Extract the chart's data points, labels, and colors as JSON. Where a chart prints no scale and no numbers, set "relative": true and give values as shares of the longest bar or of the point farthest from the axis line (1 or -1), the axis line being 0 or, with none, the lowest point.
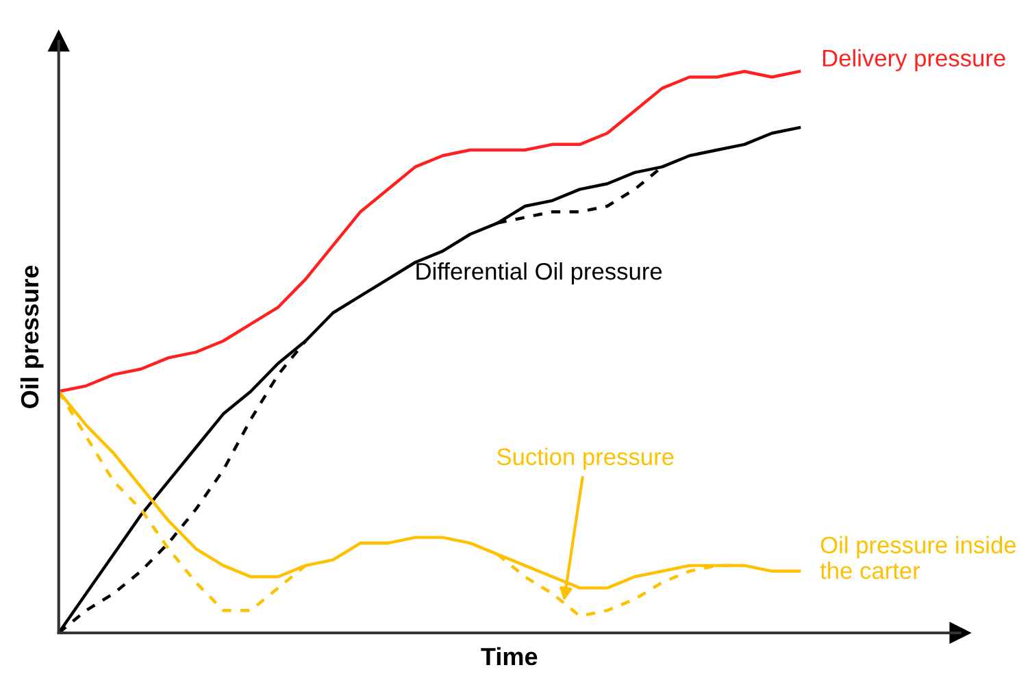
{
  "chart_data": {
    "type": "line",
    "relative": true,
    "xlabel": "Time",
    "ylabel": "Oil pressure",
    "categories": [
      null,
      null,
      null,
      null,
      null,
      null,
      null,
      null,
      null,
      null,
      null,
      null,
      null,
      null,
      null,
      null,
      null,
      null,
      null,
      null,
      null,
      null,
      null,
      null,
      null,
      null,
      null,
      null
    ],
    "series": [
      {
        "name": "Delivery pressure",
        "color": "#ff2020",
        "line_style": "solid",
        "values": [
          0.43,
          0.44,
          0.46,
          0.47,
          0.49,
          0.5,
          0.52,
          0.55,
          0.58,
          0.63,
          0.69,
          0.75,
          0.79,
          0.83,
          0.85,
          0.86,
          0.86,
          0.86,
          0.87,
          0.87,
          0.89,
          0.93,
          0.97,
          0.99,
          0.99,
          1.0,
          0.99,
          1.0
        ]
      },
      {
        "name": "Differential Oil pressure",
        "color": "#000000",
        "line_style": "solid",
        "values": [
          0,
          0.07,
          0.14,
          0.21,
          0.27,
          0.33,
          0.39,
          0.43,
          0.48,
          0.52,
          0.57,
          0.6,
          0.63,
          0.66,
          0.68,
          0.71,
          0.73,
          0.76,
          0.77,
          0.79,
          0.8,
          0.82,
          0.83,
          0.85,
          0.86,
          0.87,
          0.89,
          0.9
        ]
      },
      {
        "color": "#000000",
        "line_style": "dashed",
        "values": [
          0,
          0.04,
          0.07,
          0.11,
          0.16,
          0.22,
          0.29,
          0.38,
          0.46,
          0.52,
          null,
          null,
          null,
          null,
          null,
          null,
          0.73,
          0.74,
          0.75,
          0.75,
          0.76,
          0.79,
          0.83,
          null,
          null,
          null,
          null,
          null
        ]
      },
      {
        "name": "Suction pressure",
        "color": "#ffc000",
        "line_style": "dashed",
        "values": [
          0.43,
          0.35,
          0.27,
          0.22,
          0.15,
          0.09,
          0.04,
          0.04,
          0.08,
          0.12,
          null,
          null,
          null,
          null,
          null,
          null,
          0.14,
          0.1,
          0.07,
          0.03,
          0.04,
          0.06,
          0.09,
          0.11,
          0.12,
          0.12,
          null,
          null
        ]
      },
      {
        "name": "Oil pressure inside the carter",
        "color": "#ffc000",
        "line_style": "solid",
        "values": [
          0.43,
          0.37,
          0.32,
          0.26,
          0.2,
          0.15,
          0.12,
          0.1,
          0.1,
          0.12,
          0.13,
          0.16,
          0.16,
          0.17,
          0.17,
          0.16,
          0.14,
          0.12,
          0.1,
          0.08,
          0.08,
          0.1,
          0.11,
          0.12,
          0.12,
          0.12,
          0.11,
          0.11
        ]
      }
    ]
  }
}
